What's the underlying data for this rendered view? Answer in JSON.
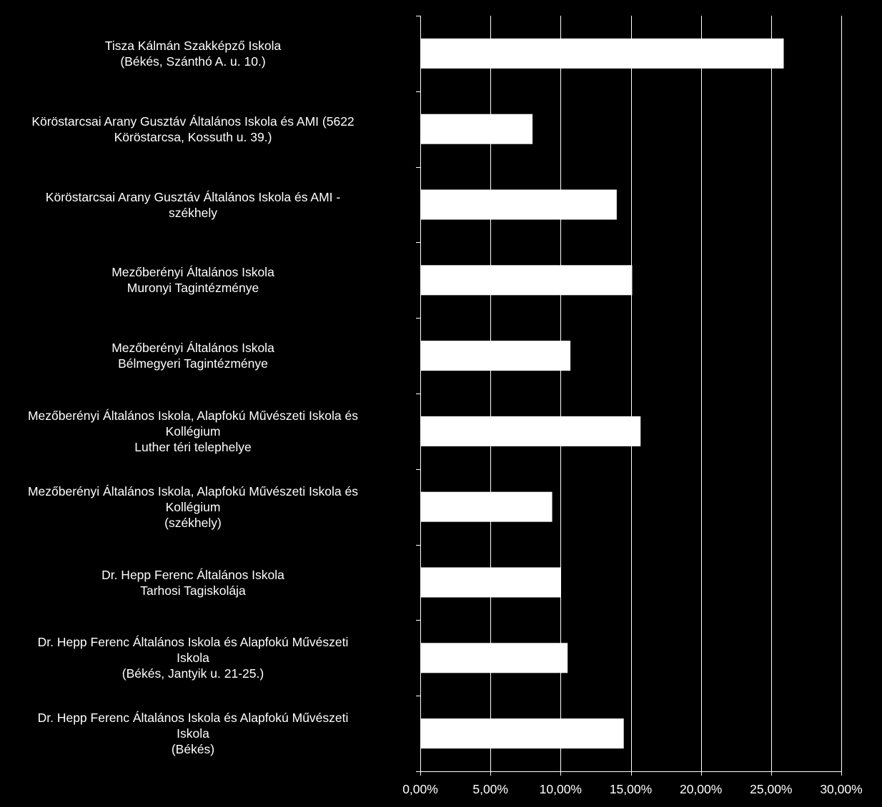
{
  "chart_data": {
    "type": "bar",
    "orientation": "horizontal",
    "categories": [
      "Tisza Kálmán Szakképző Iskola\n(Békés, Szánthó A. u. 10.)",
      "Köröstarcsai Arany Gusztáv Általános Iskola és AMI (5622\nKöröstarcsa, Kossuth u. 39.)",
      "Köröstarcsai Arany Gusztáv Általános Iskola és AMI -\nszékhely",
      "Mezőberényi Általános Iskola\nMuronyi Tagintézménye",
      "Mezőberényi Általános Iskola\nBélmegyeri Tagintézménye",
      "Mezőberényi Általános Iskola, Alapfokú Művészeti Iskola és\nKollégium\nLuther téri telephelye",
      "Mezőberényi Általános Iskola, Alapfokú Művészeti Iskola és\nKollégium\n(székhely)",
      "Dr. Hepp Ferenc Általános Iskola\nTarhosi Tagiskolája",
      "Dr. Hepp Ferenc Általános Iskola és Alapfokú Művészeti\nIskola\n(Békés, Jantyik u. 21-25.)",
      "Dr. Hepp Ferenc Általános Iskola és Alapfokú Művészeti\nIskola\n(Békés)"
    ],
    "values": [
      25.9,
      8.0,
      14.0,
      15.1,
      10.7,
      15.7,
      9.4,
      10.0,
      10.5,
      14.5
    ],
    "xlim": [
      0,
      30
    ],
    "ticks": [
      0,
      5,
      10,
      15,
      20,
      25,
      30
    ],
    "tick_labels": [
      "0,00%",
      "5,00%",
      "10,00%",
      "15,00%",
      "20,00%",
      "25,00%",
      "30,00%"
    ],
    "grid": true,
    "colors": {
      "background": "#000000",
      "bar": "#ffffff",
      "axis": "#ffffff",
      "grid": "#ffffff",
      "text": "#ffffff"
    }
  }
}
